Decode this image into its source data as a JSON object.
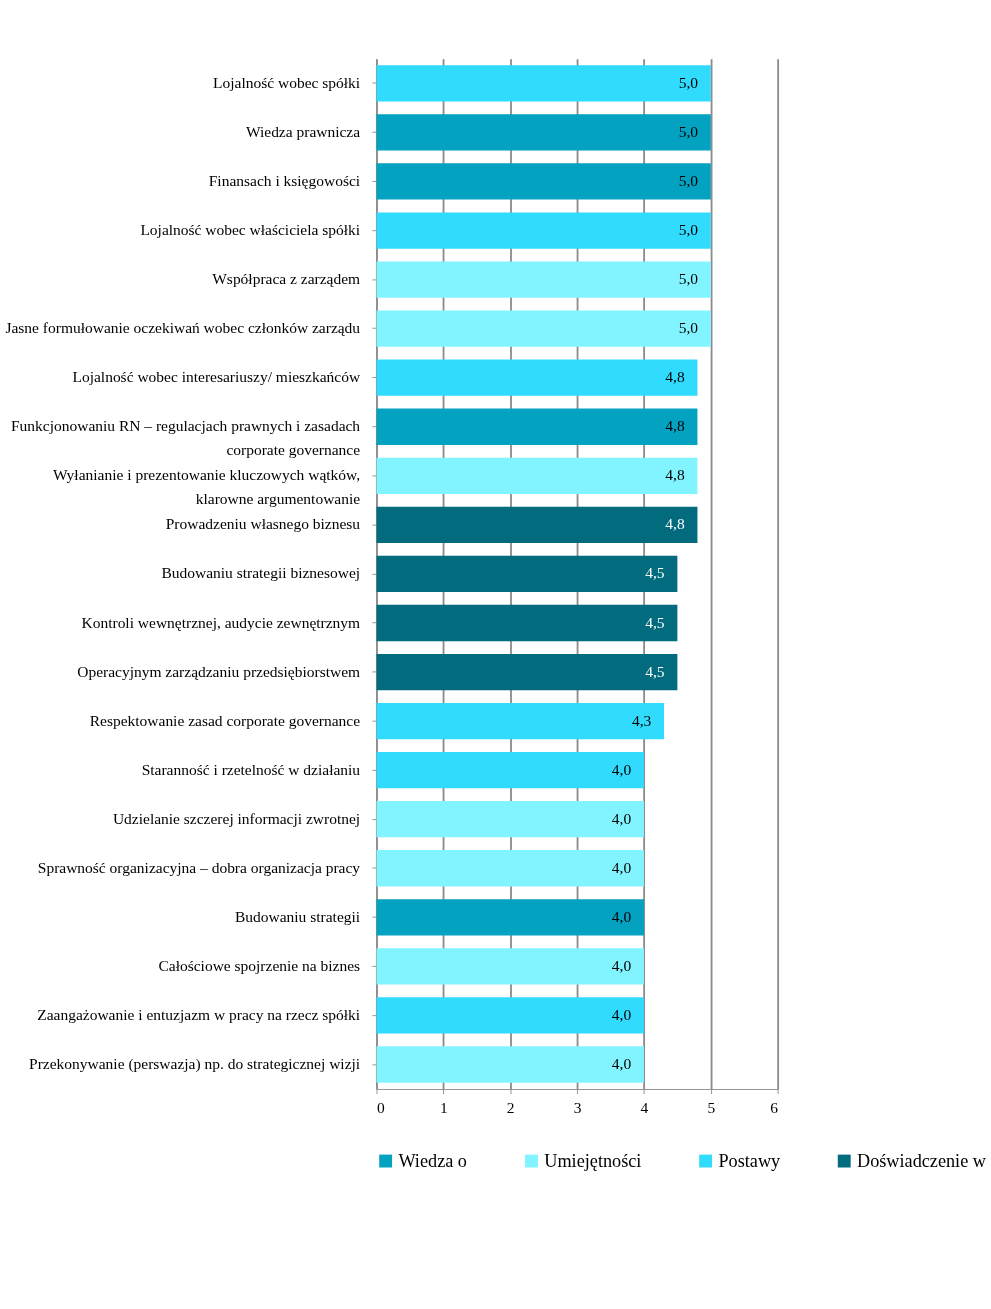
{
  "chart_data": {
    "type": "bar",
    "orientation": "horizontal",
    "categories": [
      "Lojalność wobec spółki",
      "Wiedza prawnicza",
      "Finansach i księgowości",
      "Lojalność wobec właściciela spółki",
      "Współpraca z zarządem",
      "Jasne formułowanie oczekiwań wobec członków zarządu",
      "Lojalność wobec interesariuszy/ mieszkańców",
      "Funkcjonowaniu RN – regulacjach prawnych i zasadach corporate governance",
      "Wyłanianie i prezentowanie kluczowych wątków, klarowne argumentowanie",
      "Prowadzeniu własnego biznesu",
      "Budowaniu strategii biznesowej",
      "Kontroli wewnętrznej, audycie zewnętrznym",
      "Operacyjnym zarządzaniu przedsiębiorstwem",
      "Respektowanie zasad corporate governance",
      "Staranność i rzetelność w działaniu",
      "Udzielanie szczerej informacji zwrotnej",
      "Sprawność organizacyjna – dobra organizacja pracy",
      "Budowaniu strategii",
      "Całościowe spojrzenie na biznes",
      "Zaangażowanie i entuzjazm w pracy na rzecz spółki",
      "Przekonywanie (perswazja) np. do strategicznej wizji"
    ],
    "series": [
      {
        "name": "Wiedza o",
        "color": "#03a2c1",
        "values": [
          null,
          5.0,
          5.0,
          null,
          null,
          null,
          null,
          4.8,
          null,
          null,
          null,
          null,
          null,
          null,
          null,
          null,
          null,
          4.0,
          null,
          null,
          null
        ],
        "value_labels": [
          null,
          "5,0",
          "5,0",
          null,
          null,
          null,
          null,
          "4,8",
          null,
          null,
          null,
          null,
          null,
          null,
          null,
          null,
          null,
          "4,0",
          null,
          null,
          null
        ]
      },
      {
        "name": "Umiejętności",
        "color": "#82f4ff",
        "values": [
          null,
          null,
          null,
          null,
          5.0,
          5.0,
          null,
          null,
          4.8,
          null,
          null,
          null,
          null,
          null,
          null,
          4.0,
          4.0,
          null,
          4.0,
          null,
          4.0
        ],
        "value_labels": [
          null,
          null,
          null,
          null,
          "5,0",
          "5,0",
          null,
          null,
          "4,8",
          null,
          null,
          null,
          null,
          null,
          null,
          "4,0",
          "4,0",
          null,
          "4,0",
          null,
          "4,0"
        ]
      },
      {
        "name": "Postawy",
        "color": "#31dbfd",
        "values": [
          5.0,
          null,
          null,
          5.0,
          null,
          null,
          4.8,
          null,
          null,
          null,
          null,
          null,
          null,
          4.3,
          4.0,
          null,
          null,
          null,
          null,
          4.0,
          null
        ],
        "value_labels": [
          "5,0",
          null,
          null,
          "5,0",
          null,
          null,
          "4,8",
          null,
          null,
          null,
          null,
          null,
          null,
          "4,3",
          "4,0",
          null,
          null,
          null,
          null,
          "4,0",
          null
        ]
      },
      {
        "name": "Doświadczenie w",
        "color": "#026b7e",
        "values": [
          null,
          null,
          null,
          null,
          null,
          null,
          null,
          null,
          null,
          4.8,
          4.5,
          4.5,
          4.5,
          null,
          null,
          null,
          null,
          null,
          null,
          null,
          null
        ],
        "value_labels": [
          null,
          null,
          null,
          null,
          null,
          null,
          null,
          null,
          null,
          "4,8",
          "4,5",
          "4,5",
          "4,5",
          null,
          null,
          null,
          null,
          null,
          null,
          null,
          null
        ]
      }
    ],
    "xlim": [
      0,
      6
    ],
    "xticks": [
      0,
      1,
      2,
      3,
      4,
      5,
      6
    ],
    "grid": "x",
    "legend": "bottom"
  }
}
